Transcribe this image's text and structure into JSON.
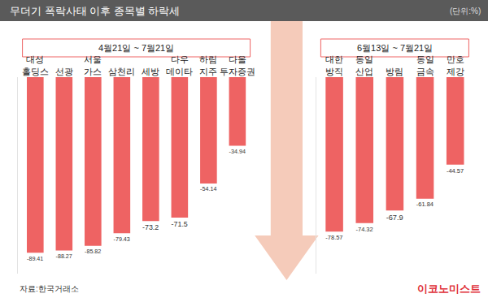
{
  "title": "무더기 폭락사태 이후 종목별 하락세",
  "unit": "(단위:%)",
  "source": "자료:한국거래소",
  "brand": "이코노미스트",
  "chart_data": [
    {
      "type": "bar",
      "subtitle": "4월21일 ~ 7월21일",
      "categories": [
        "대성\n홀딩스",
        "선광",
        "서울\n가스",
        "삼천리",
        "세방",
        "다우\n데이타",
        "하림\n지주",
        "다올\n투자증권"
      ],
      "values": [
        -89.41,
        -88.27,
        -85.82,
        -79.43,
        -73.2,
        -71.5,
        -54.14,
        -34.94
      ],
      "color": "#ee6363",
      "data_labels": true,
      "tick_labels": "x",
      "ylim": [
        -100,
        0
      ],
      "yticks": []
    },
    {
      "type": "bar",
      "subtitle": "6월13일 ~ 7월21일",
      "categories": [
        "대한\n방직",
        "동일\n산업",
        "방림",
        "동일\n금속",
        "만호\n제강"
      ],
      "values": [
        -78.57,
        -74.32,
        -67.9,
        -61.84,
        -44.57
      ],
      "color": "#ee6363",
      "data_labels": true,
      "tick_labels": "x",
      "ylim": [
        -100,
        0
      ],
      "yticks": []
    }
  ]
}
